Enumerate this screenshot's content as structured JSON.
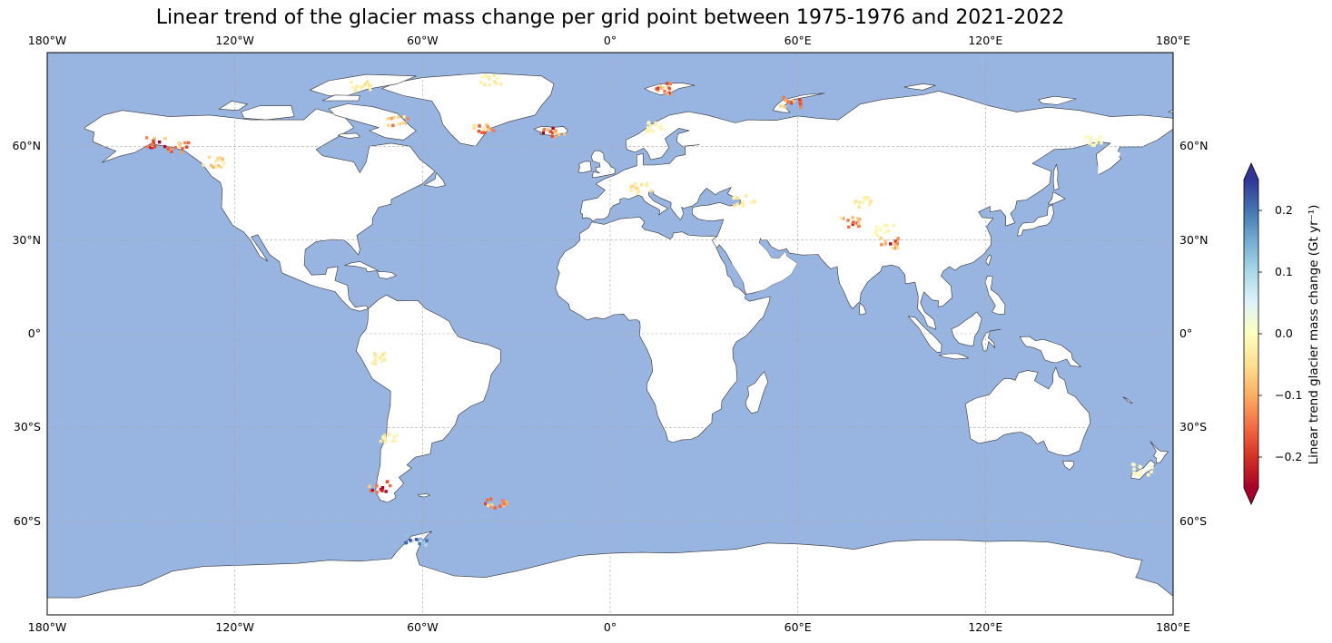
{
  "map": {
    "title": "Linear trend of the glacier mass change per grid point between 1975-1976 and 2021-2022",
    "projection": "PlateCarree",
    "extent": {
      "lon": [
        -180,
        180
      ],
      "lat": [
        -90,
        90
      ]
    },
    "gridlines": true,
    "colors": {
      "ocean": "#97b5e0",
      "land": "#ffffff",
      "coast": "#333333",
      "grid": "#aaaaaa"
    },
    "lon_ticks": [
      {
        "value": -180,
        "label": "180°W"
      },
      {
        "value": -120,
        "label": "120°W"
      },
      {
        "value": -60,
        "label": "60°W"
      },
      {
        "value": 0,
        "label": "0°"
      },
      {
        "value": 60,
        "label": "60°E"
      },
      {
        "value": 120,
        "label": "120°E"
      },
      {
        "value": 180,
        "label": "180°E"
      }
    ],
    "lat_ticks": [
      {
        "value": 60,
        "label": "60°N"
      },
      {
        "value": 30,
        "label": "30°N"
      },
      {
        "value": 0,
        "label": "0°"
      },
      {
        "value": -30,
        "label": "30°S"
      },
      {
        "value": -60,
        "label": "60°S"
      }
    ]
  },
  "colorbar": {
    "label": "Linear trend glacier mass change (Gt yr⁻¹)",
    "cmap": "RdYlBu",
    "range": [
      -0.25,
      0.25
    ],
    "extend": "both",
    "ticks": [
      {
        "value": 0.2,
        "label": "0.2"
      },
      {
        "value": 0.1,
        "label": "0.1"
      },
      {
        "value": 0.0,
        "label": "0.0"
      },
      {
        "value": -0.1,
        "label": "−0.1"
      },
      {
        "value": -0.2,
        "label": "−0.2"
      }
    ],
    "stops": [
      "#a50026",
      "#d73027",
      "#f46d43",
      "#fdae61",
      "#fee090",
      "#ffffbf",
      "#e0f3f8",
      "#abd9e9",
      "#74add1",
      "#4575b4",
      "#313695"
    ]
  },
  "glacier_regions": [
    {
      "name": "Alaska",
      "lon": -145,
      "lat": 61,
      "trend": -0.22
    },
    {
      "name": "Alaska-coast",
      "lon": -138,
      "lat": 59.5,
      "trend": -0.15
    },
    {
      "name": "Western-Canada",
      "lon": -127,
      "lat": 55,
      "trend": -0.08
    },
    {
      "name": "Arctic-Canada-north",
      "lon": -80,
      "lat": 79,
      "trend": -0.05
    },
    {
      "name": "Arctic-Canada-south",
      "lon": -68,
      "lat": 68,
      "trend": -0.12
    },
    {
      "name": "Greenland-southeast",
      "lon": -40,
      "lat": 66,
      "trend": -0.14
    },
    {
      "name": "Greenland-north",
      "lon": -38,
      "lat": 81,
      "trend": -0.03
    },
    {
      "name": "Iceland",
      "lon": -18,
      "lat": 64.5,
      "trend": -0.23
    },
    {
      "name": "Svalbard",
      "lon": 17,
      "lat": 78.5,
      "trend": -0.18
    },
    {
      "name": "Novaya-Zemlya",
      "lon": 58,
      "lat": 74,
      "trend": -0.16
    },
    {
      "name": "Scandinavia",
      "lon": 15,
      "lat": 66,
      "trend": -0.02
    },
    {
      "name": "Alps",
      "lon": 10,
      "lat": 46.5,
      "trend": -0.05
    },
    {
      "name": "Caucasus",
      "lon": 43,
      "lat": 42.5,
      "trend": -0.04
    },
    {
      "name": "Karakoram",
      "lon": 77,
      "lat": 35.5,
      "trend": -0.18
    },
    {
      "name": "Himalaya",
      "lon": 90,
      "lat": 29,
      "trend": -0.2
    },
    {
      "name": "Tien-Shan",
      "lon": 80,
      "lat": 42,
      "trend": -0.04
    },
    {
      "name": "Tibet",
      "lon": 88,
      "lat": 33,
      "trend": -0.02
    },
    {
      "name": "Siberia-northeast",
      "lon": 155,
      "lat": 62,
      "trend": -0.01
    },
    {
      "name": "Andes-tropical",
      "lon": -75,
      "lat": -8,
      "trend": -0.04
    },
    {
      "name": "Andes-central",
      "lon": -70,
      "lat": -33,
      "trend": -0.03
    },
    {
      "name": "Patagonia",
      "lon": -73.5,
      "lat": -49,
      "trend": -0.24
    },
    {
      "name": "Antarctic-Peninsula",
      "lon": -62,
      "lat": -66,
      "trend": 0.2
    },
    {
      "name": "New-Zealand",
      "lon": 170,
      "lat": -43.5,
      "trend": -0.01
    },
    {
      "name": "South-Georgia",
      "lon": -36.5,
      "lat": -54.5,
      "trend": -0.15
    }
  ]
}
